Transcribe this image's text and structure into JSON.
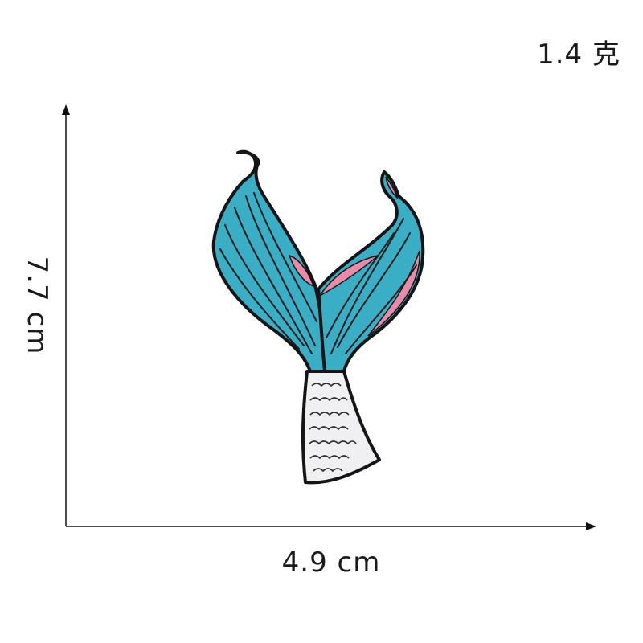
{
  "labels": {
    "weight": "1.4 克",
    "width": "4.9 cm",
    "height": "7.7 cm"
  },
  "product": {
    "image": "mermaid-tail-embroidered-patch",
    "colors": {
      "fin_blue": "#3aaec4",
      "fin_pink": "#e98aa8",
      "scales_white": "#f0f0f2",
      "outline": "#151515"
    }
  }
}
